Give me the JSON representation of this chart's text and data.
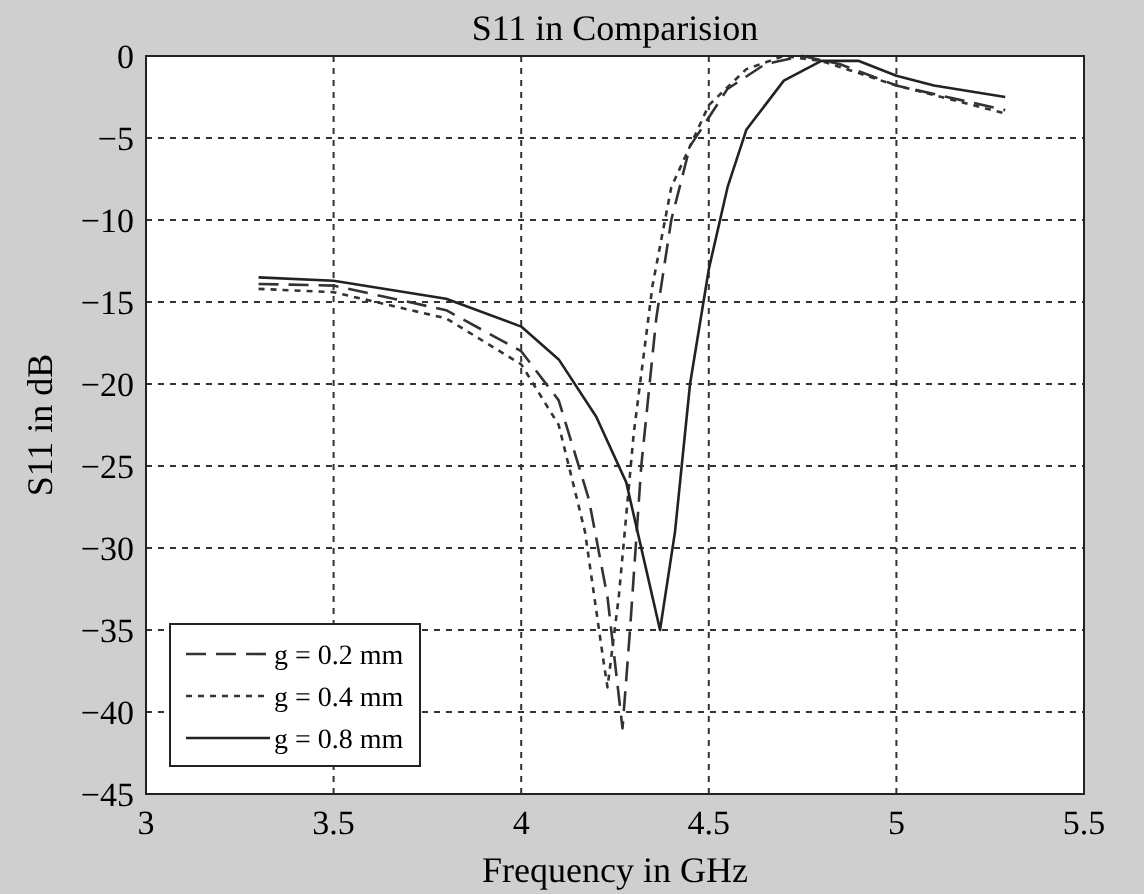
{
  "chart_data": {
    "type": "line",
    "title": "S11 in Comparision",
    "xlabel": "Frequency in GHz",
    "ylabel": "S11 in dB",
    "xlim": [
      3,
      5.5
    ],
    "xticks": [
      3,
      3.5,
      4,
      4.5,
      5,
      5.5
    ],
    "ylim": [
      -45,
      0
    ],
    "yticks": [
      -45,
      -40,
      -35,
      -30,
      -25,
      -20,
      -15,
      -10,
      -5,
      0
    ],
    "grid": true,
    "legend": "bottom left",
    "series": [
      {
        "name": "g = 0.2 mm",
        "color": "#333333",
        "line_style": "dashed",
        "x": [
          3.3,
          3.5,
          3.8,
          4.0,
          4.1,
          4.18,
          4.23,
          4.27,
          4.29,
          4.32,
          4.36,
          4.4,
          4.45,
          4.55,
          4.65,
          4.75,
          4.85,
          5.0,
          5.29
        ],
        "values": [
          -13.9,
          -14,
          -15.5,
          -18,
          -21,
          -27,
          -33,
          -41,
          -35,
          -25,
          -16,
          -10,
          -5.5,
          -2,
          -0.5,
          0,
          -0.5,
          -1.8,
          -3.3
        ]
      },
      {
        "name": "g = 0.4 mm",
        "color": "#333333",
        "line_style": "dotted",
        "x": [
          3.3,
          3.5,
          3.8,
          4.0,
          4.1,
          4.17,
          4.22,
          4.23,
          4.26,
          4.3,
          4.35,
          4.4,
          4.5,
          4.6,
          4.7,
          4.8,
          5.0,
          5.29
        ],
        "values": [
          -14.2,
          -14.4,
          -16,
          -18.8,
          -22.5,
          -29,
          -37,
          -38.5,
          -33,
          -23,
          -14,
          -8,
          -3,
          -0.8,
          0,
          -0.3,
          -1.8,
          -3.5
        ]
      },
      {
        "name": "g = 0.8 mm",
        "color": "#222222",
        "line_style": "solid",
        "x": [
          3.3,
          3.5,
          3.8,
          4.0,
          4.1,
          4.2,
          4.28,
          4.33,
          4.37,
          4.41,
          4.45,
          4.5,
          4.55,
          4.6,
          4.7,
          4.8,
          4.9,
          5.0,
          5.1,
          5.29
        ],
        "values": [
          -13.5,
          -13.7,
          -14.8,
          -16.5,
          -18.5,
          -22,
          -26,
          -31,
          -35,
          -29,
          -20,
          -13,
          -8,
          -4.5,
          -1.5,
          -0.3,
          -0.3,
          -1.2,
          -1.8,
          -2.5
        ]
      }
    ]
  }
}
